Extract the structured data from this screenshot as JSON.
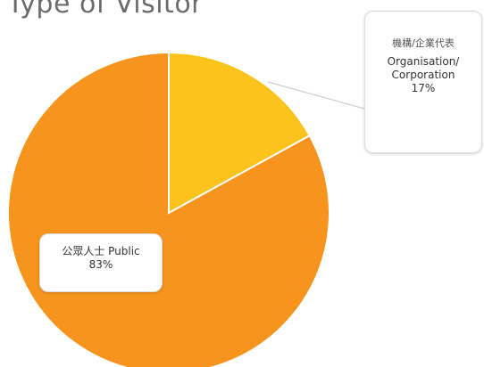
{
  "chart_data": {
    "type": "pie",
    "title": "Type of Visitor",
    "slices": [
      {
        "label_cn": "機構/企業代表",
        "label_en_1": "Organisation/",
        "label_en_2": "Corporation",
        "value": 17,
        "value_label": "17%",
        "color": "#FBC31C"
      },
      {
        "label_cn": "公眾人士",
        "label_en": "Public",
        "label": "公眾人士 Public",
        "value": 83,
        "value_label": "83%",
        "color": "#F7941D"
      }
    ],
    "start_angle_deg": 0,
    "direction": "clockwise",
    "legend": "callouts"
  }
}
